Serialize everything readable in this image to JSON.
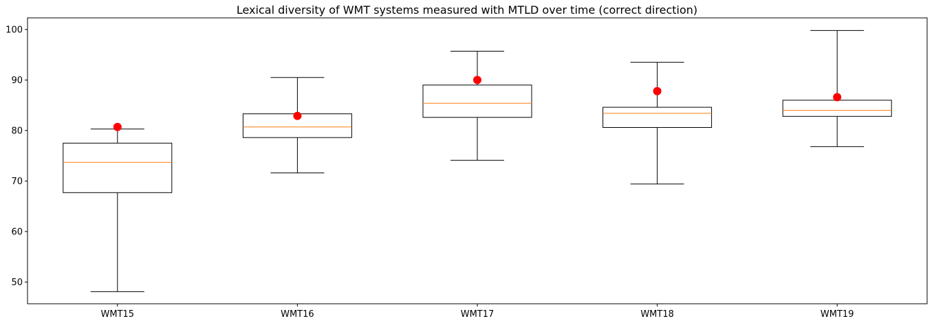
{
  "chart_data": {
    "type": "boxplot",
    "title": "Lexical diversity of WMT systems measured with MTLD over time (correct direction)",
    "xlabel": "",
    "ylabel": "",
    "ylim": [
      45.7,
      102.3
    ],
    "yticks": [
      50,
      60,
      70,
      80,
      90,
      100
    ],
    "grid": false,
    "categories": [
      "WMT15",
      "WMT16",
      "WMT17",
      "WMT18",
      "WMT19"
    ],
    "boxes": [
      {
        "category": "WMT15",
        "whisker_low": 48.1,
        "q1": 67.7,
        "median": 73.7,
        "q3": 77.5,
        "whisker_high": 80.3,
        "reference": 80.7
      },
      {
        "category": "WMT16",
        "whisker_low": 71.6,
        "q1": 78.6,
        "median": 80.7,
        "q3": 83.3,
        "whisker_high": 90.5,
        "reference": 82.9
      },
      {
        "category": "WMT17",
        "whisker_low": 74.1,
        "q1": 82.6,
        "median": 85.4,
        "q3": 89.0,
        "whisker_high": 95.7,
        "reference": 90.0
      },
      {
        "category": "WMT18",
        "whisker_low": 69.4,
        "q1": 80.6,
        "median": 83.4,
        "q3": 84.6,
        "whisker_high": 93.5,
        "reference": 87.8
      },
      {
        "category": "WMT19",
        "whisker_low": 76.8,
        "q1": 82.8,
        "median": 84.0,
        "q3": 86.0,
        "whisker_high": 99.8,
        "reference": 86.6
      }
    ],
    "colors": {
      "box": "#000000",
      "median": "#ff7f0e",
      "reference_marker": "#ff0000",
      "axes": "#000000"
    }
  }
}
